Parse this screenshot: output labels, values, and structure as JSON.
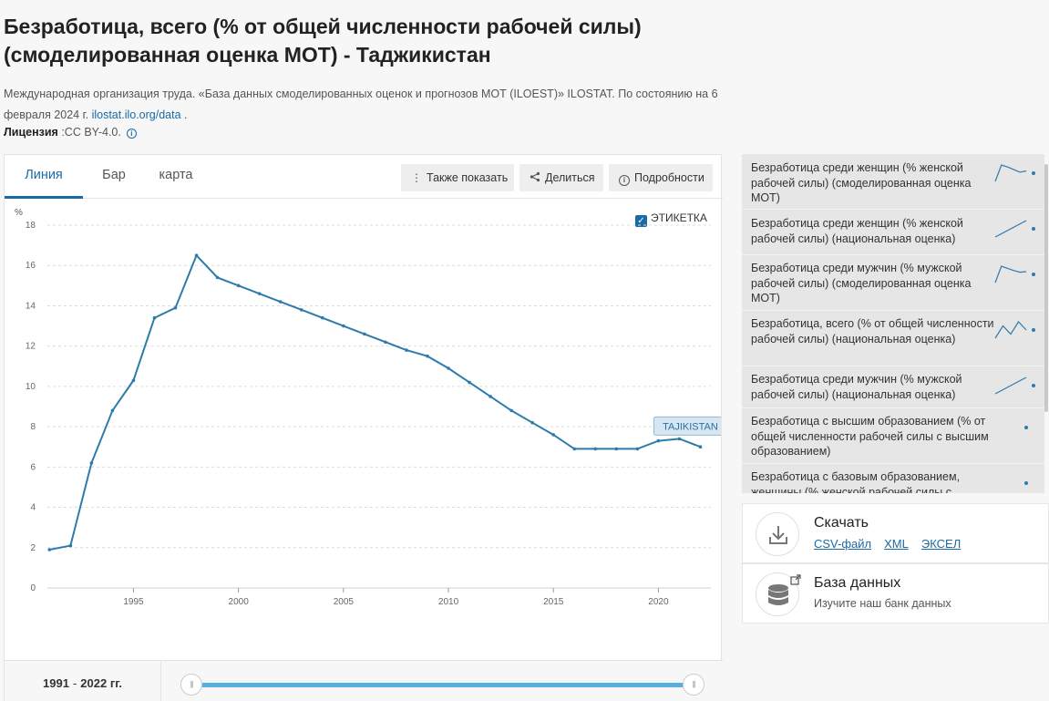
{
  "header": {
    "title": "Безработица, всего (% от общей численности рабочей силы) (смоделированная оценка МОТ) - Таджикистан",
    "source_prefix": "Международная организация труда. «База данных смоделированных оценок и прогнозов МОТ (ILOEST)» ILOSTAT. По состоянию на 6 февраля 2024 г. ",
    "source_link": "ilostat.ilo.org/data",
    "source_suffix": " .",
    "license_label": "Лицензия",
    "license_value": " :CC BY-4.0."
  },
  "tabs": [
    {
      "label": "Линия",
      "active": true
    },
    {
      "label": "Бар",
      "active": false
    },
    {
      "label": "карта",
      "active": false
    }
  ],
  "toolbar": {
    "also_show": "Также показать",
    "share": "Делиться",
    "details": "Подробности"
  },
  "label_toggle": {
    "label": "ЭТИКЕТКА",
    "checked": true
  },
  "chart_data": {
    "type": "line",
    "ylabel": "%",
    "ylim": [
      0,
      18
    ],
    "yticks": [
      0,
      2,
      4,
      6,
      8,
      10,
      12,
      14,
      16,
      18
    ],
    "xlim": [
      1991,
      2022
    ],
    "xticks": [
      1995,
      2000,
      2005,
      2010,
      2015,
      2020
    ],
    "grid": true,
    "series": [
      {
        "name": "TAJIKISTAN",
        "color": "#2e7bab",
        "x": [
          1991,
          1992,
          1993,
          1994,
          1995,
          1996,
          1997,
          1998,
          1999,
          2000,
          2001,
          2002,
          2003,
          2004,
          2005,
          2006,
          2007,
          2008,
          2009,
          2010,
          2011,
          2012,
          2013,
          2014,
          2015,
          2016,
          2017,
          2018,
          2019,
          2020,
          2021,
          2022
        ],
        "y": [
          1.9,
          2.1,
          6.2,
          8.8,
          10.3,
          13.4,
          13.9,
          16.5,
          15.4,
          15.0,
          14.6,
          14.2,
          13.8,
          13.4,
          13.0,
          12.6,
          12.2,
          11.8,
          11.5,
          10.9,
          10.2,
          9.5,
          8.8,
          8.2,
          7.6,
          6.9,
          6.9,
          6.9,
          6.9,
          7.3,
          7.4,
          7.0
        ]
      }
    ]
  },
  "range": {
    "from": "1991",
    "to": "2022 гг.",
    "separator": "-"
  },
  "related": [
    {
      "label": "Безработица среди женщин (% женской рабочей силы) (смоделированная оценка МОТ)",
      "spark": [
        14,
        16.5,
        16.2,
        15.8,
        15.4,
        15.6
      ]
    },
    {
      "label": "Безработица среди женщин (% женской рабочей силы) (национальная оценка)",
      "spark": [
        2.0,
        2.6
      ]
    },
    {
      "label": "Безработица среди мужчин (% мужской рабочей силы) (смоделированная оценка МОТ)",
      "spark": [
        12,
        15,
        14.6,
        14.2,
        13.9,
        14.0
      ]
    },
    {
      "label": "Безработица, всего (% от общей численности рабочей силы) (национальная оценка)",
      "spark": [
        2.4,
        2.7,
        2.5,
        2.8,
        2.6
      ]
    },
    {
      "label": "Безработица среди мужчин (% мужской рабочей силы) (национальная оценка)",
      "spark": [
        2.0,
        2.4
      ]
    },
    {
      "label": "Безработица с высшим образованием (% от общей численности рабочей силы с высшим образованием)",
      "spark": []
    },
    {
      "label": "Безработица с базовым образованием, женщины (% женской рабочей силы с",
      "spark": []
    }
  ],
  "download": {
    "title": "Скачать",
    "links": [
      "CSV-файл",
      "XML",
      "ЭКСЕЛ"
    ]
  },
  "database": {
    "title": "База данных",
    "subtitle": "Изучите наш банк данных"
  }
}
